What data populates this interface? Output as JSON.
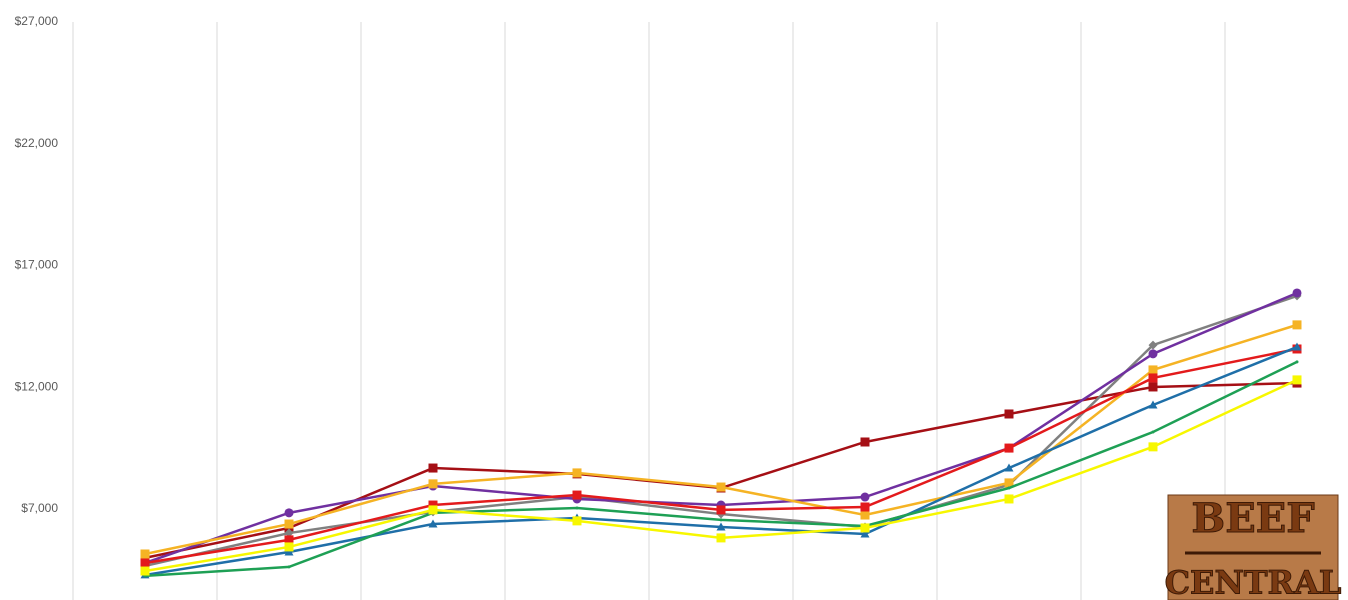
{
  "chart_data": {
    "type": "line",
    "categories": [
      null,
      null,
      null,
      null,
      null,
      null,
      null,
      null,
      null
    ],
    "ylim": [
      3260,
      27000
    ],
    "yticks": [
      {
        "value": 7000,
        "label": "$7,000"
      },
      {
        "value": 12000,
        "label": "$12,000"
      },
      {
        "value": 17000,
        "label": "$17,000"
      },
      {
        "value": 22000,
        "label": "$22,000"
      },
      {
        "value": 27000,
        "label": "$27,000"
      }
    ],
    "grid": true,
    "series": [
      {
        "color": "#a50f15",
        "marker": "square",
        "values": [
          4990,
          6220,
          8680,
          8440,
          7860,
          9750,
          10900,
          12010,
          12170
        ]
      },
      {
        "color": "#808080",
        "marker": "diamond",
        "values": [
          4660,
          6010,
          6880,
          7490,
          6790,
          6260,
          7990,
          13730,
          15750
        ]
      },
      {
        "color": "#7030a0",
        "marker": "circle",
        "values": [
          4780,
          6840,
          7940,
          7410,
          7160,
          7490,
          9500,
          13370,
          15870
        ]
      },
      {
        "color": "#f5b324",
        "marker": "square",
        "values": [
          5150,
          6380,
          8030,
          8480,
          7900,
          6750,
          8070,
          12710,
          14560
        ]
      },
      {
        "color": "#e31a1c",
        "marker": "square",
        "values": [
          4780,
          5730,
          7160,
          7570,
          6960,
          7080,
          9500,
          12380,
          13570
        ]
      },
      {
        "color": "#1f6fa8",
        "marker": "triangle",
        "values": [
          4290,
          5230,
          6380,
          6630,
          6260,
          5970,
          8680,
          11270,
          13650
        ]
      },
      {
        "color": "#1ea055",
        "marker": "none",
        "values": [
          4250,
          4620,
          6840,
          7040,
          6550,
          6300,
          7860,
          10160,
          13040
        ]
      },
      {
        "color": "#f7f700",
        "marker": "square",
        "values": [
          4450,
          5440,
          6960,
          6510,
          5810,
          6220,
          7410,
          9550,
          12300
        ]
      }
    ]
  },
  "logo": {
    "line1": "BEEF",
    "line2": "CENTRAL"
  }
}
